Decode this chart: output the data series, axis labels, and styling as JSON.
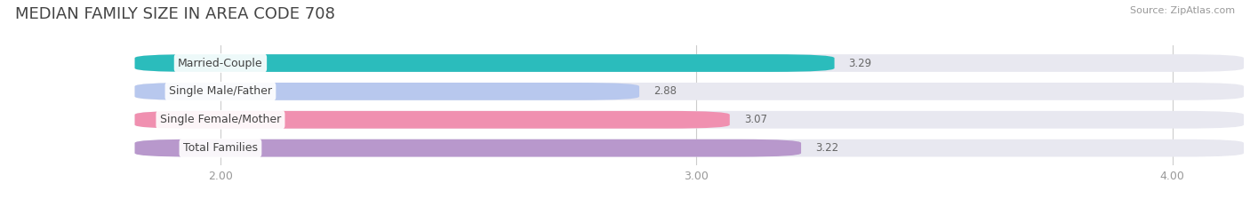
{
  "title": "MEDIAN FAMILY SIZE IN AREA CODE 708",
  "source": "Source: ZipAtlas.com",
  "categories": [
    "Married-Couple",
    "Single Male/Father",
    "Single Female/Mother",
    "Total Families"
  ],
  "values": [
    3.29,
    2.88,
    3.07,
    3.22
  ],
  "bar_colors": [
    "#2bbcbc",
    "#b8c8ee",
    "#f090b0",
    "#b898cc"
  ],
  "bar_bg_color": "#e8e8f0",
  "xlim": [
    1.55,
    4.15
  ],
  "xstart": 1.82,
  "xticks": [
    2.0,
    3.0,
    4.0
  ],
  "xtick_labels": [
    "2.00",
    "3.00",
    "4.00"
  ],
  "label_fontsize": 9,
  "value_fontsize": 8.5,
  "title_fontsize": 13,
  "bar_height": 0.62,
  "background_color": "#ffffff"
}
